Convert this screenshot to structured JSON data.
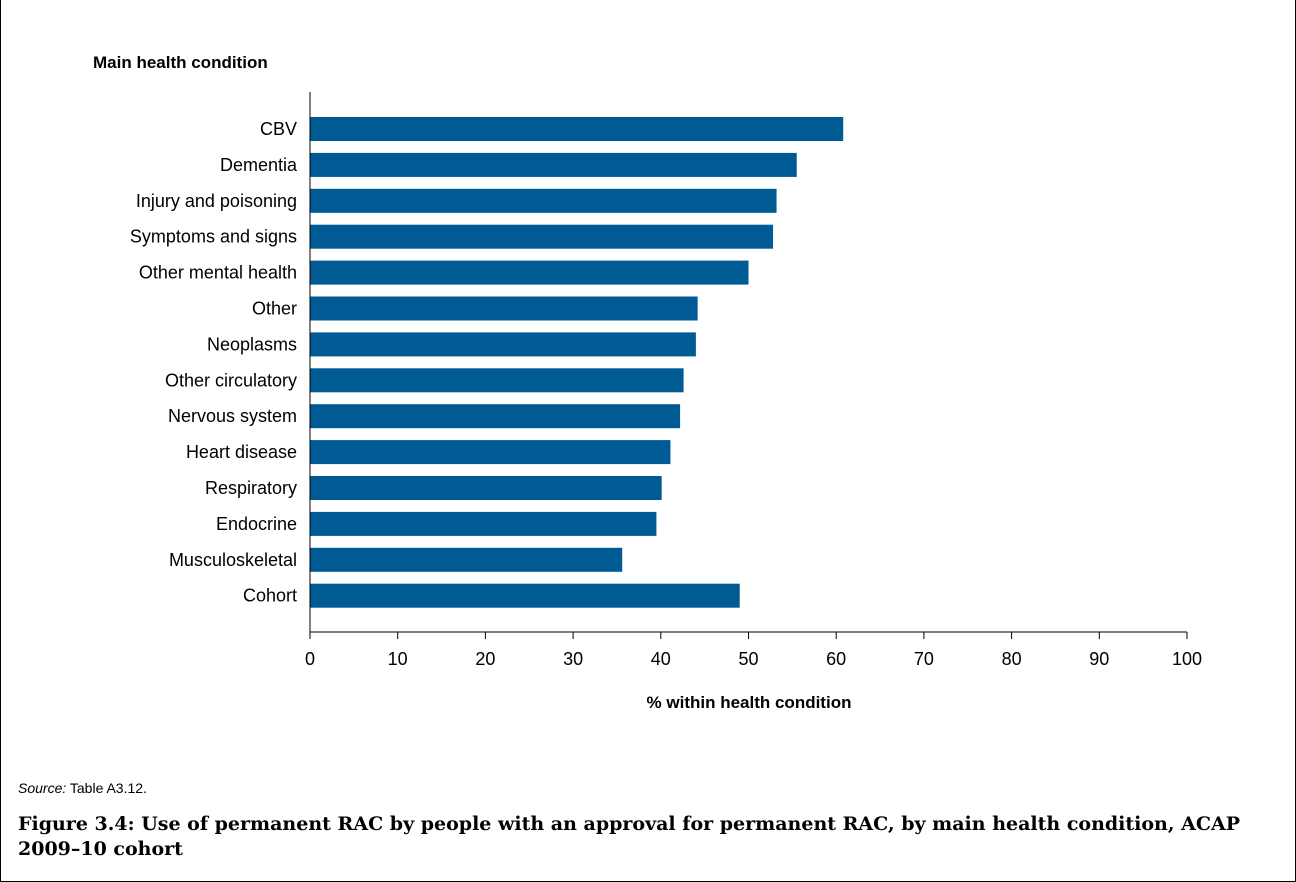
{
  "chart_data": {
    "type": "bar",
    "orientation": "horizontal",
    "title": "Main health condition",
    "xlabel": "% within health condition",
    "ylabel": "Main health condition",
    "xlim": [
      0,
      100
    ],
    "x_ticks": [
      "0",
      "10",
      "20",
      "30",
      "40",
      "50",
      "60",
      "70",
      "80",
      "90",
      "100"
    ],
    "categories": [
      "CBV",
      "Dementia",
      "Injury and poisoning",
      "Symptoms and signs",
      "Other mental health",
      "Other",
      "Neoplasms",
      "Other circulatory",
      "Nervous system",
      "Heart disease",
      "Respiratory",
      "Endocrine",
      "Musculoskeletal",
      "Cohort"
    ],
    "values": [
      60.8,
      55.5,
      53.2,
      52.8,
      50.0,
      44.2,
      44.0,
      42.6,
      42.2,
      41.1,
      40.1,
      39.5,
      35.6,
      49.0
    ],
    "bar_color": "#005a94",
    "grid": false,
    "legend": "none"
  },
  "source": {
    "label": "Source:",
    "text": " Table A3.12."
  },
  "caption": "Figure 3.4: Use of permanent RAC by people with an approval for permanent RAC, by main health condition, ACAP 2009–10 cohort"
}
